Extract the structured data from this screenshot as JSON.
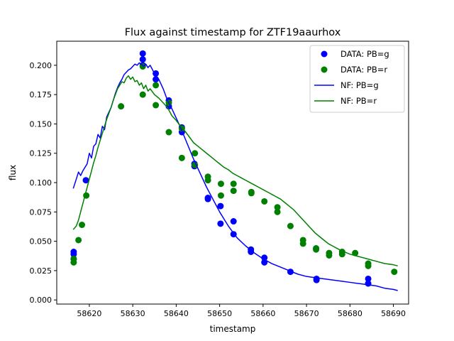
{
  "chart_data": {
    "type": "scatter",
    "title": "Flux against timestamp for ZTF19aaurhox",
    "xlabel": "timestamp",
    "ylabel": "flux",
    "xlim": [
      58612.5,
      58693.5
    ],
    "ylim": [
      -0.0035,
      0.2205
    ],
    "xticks": [
      58620,
      58630,
      58640,
      58650,
      58660,
      58670,
      58680,
      58690
    ],
    "yticks": [
      0.0,
      0.025,
      0.05,
      0.075,
      0.1,
      0.125,
      0.15,
      0.175,
      0.2
    ],
    "ytick_labels": [
      "0.000",
      "0.025",
      "0.050",
      "0.075",
      "0.100",
      "0.125",
      "0.150",
      "0.175",
      "0.200"
    ],
    "grid": false,
    "legend_position": "top-right",
    "colors": {
      "g": "#0000ff",
      "r": "#008000"
    },
    "series": [
      {
        "name": "DATA: PB=g",
        "kind": "points",
        "color": "#0000ff",
        "points": [
          [
            58616.4,
            0.041
          ],
          [
            58616.4,
            0.039
          ],
          [
            58616.4,
            0.035
          ],
          [
            58619.2,
            0.102
          ],
          [
            58632.3,
            0.21
          ],
          [
            58632.3,
            0.205
          ],
          [
            58632.3,
            0.2
          ],
          [
            58635.3,
            0.193
          ],
          [
            58635.3,
            0.188
          ],
          [
            58638.3,
            0.17
          ],
          [
            58638.3,
            0.165
          ],
          [
            58641.3,
            0.147
          ],
          [
            58641.3,
            0.143
          ],
          [
            58644.2,
            0.116
          ],
          [
            58644.2,
            0.114
          ],
          [
            58647.3,
            0.087
          ],
          [
            58647.3,
            0.086
          ],
          [
            58650.2,
            0.08
          ],
          [
            58650.2,
            0.065
          ],
          [
            58653.2,
            0.067
          ],
          [
            58653.2,
            0.056
          ],
          [
            58657.2,
            0.043
          ],
          [
            58657.2,
            0.041
          ],
          [
            58660.3,
            0.036
          ],
          [
            58660.3,
            0.032
          ],
          [
            58666.3,
            0.024
          ],
          [
            58672.3,
            0.018
          ],
          [
            58672.3,
            0.017
          ],
          [
            58684.2,
            0.018
          ],
          [
            58684.2,
            0.014
          ]
        ]
      },
      {
        "name": "DATA: PB=r",
        "kind": "points",
        "color": "#008000",
        "points": [
          [
            58616.4,
            0.035
          ],
          [
            58616.4,
            0.032
          ],
          [
            58617.5,
            0.051
          ],
          [
            58618.3,
            0.064
          ],
          [
            58619.3,
            0.089
          ],
          [
            58627.3,
            0.165
          ],
          [
            58632.3,
            0.199
          ],
          [
            58632.3,
            0.175
          ],
          [
            58635.3,
            0.183
          ],
          [
            58635.3,
            0.166
          ],
          [
            58638.3,
            0.168
          ],
          [
            58638.3,
            0.143
          ],
          [
            58641.3,
            0.146
          ],
          [
            58641.3,
            0.121
          ],
          [
            58644.3,
            0.125
          ],
          [
            58644.3,
            0.115
          ],
          [
            58647.3,
            0.105
          ],
          [
            58647.3,
            0.102
          ],
          [
            58650.3,
            0.099
          ],
          [
            58650.3,
            0.089
          ],
          [
            58653.2,
            0.099
          ],
          [
            58653.2,
            0.093
          ],
          [
            58657.3,
            0.092
          ],
          [
            58657.3,
            0.091
          ],
          [
            58660.3,
            0.084
          ],
          [
            58663.3,
            0.079
          ],
          [
            58663.3,
            0.075
          ],
          [
            58666.3,
            0.063
          ],
          [
            58669.2,
            0.051
          ],
          [
            58669.2,
            0.048
          ],
          [
            58672.2,
            0.044
          ],
          [
            58672.2,
            0.043
          ],
          [
            58675.2,
            0.04
          ],
          [
            58675.2,
            0.038
          ],
          [
            58678.2,
            0.041
          ],
          [
            58678.2,
            0.039
          ],
          [
            58681.2,
            0.04
          ],
          [
            58684.2,
            0.031
          ],
          [
            58684.2,
            0.029
          ],
          [
            58690.2,
            0.024
          ]
        ]
      },
      {
        "name": "NF: PB=g",
        "kind": "line",
        "color": "#0000ff",
        "points": [
          [
            58616.3,
            0.095
          ],
          [
            58617.0,
            0.103
          ],
          [
            58617.5,
            0.109
          ],
          [
            58618.0,
            0.106
          ],
          [
            58618.5,
            0.11
          ],
          [
            58619.0,
            0.113
          ],
          [
            58619.5,
            0.116
          ],
          [
            58620.0,
            0.125
          ],
          [
            58620.5,
            0.121
          ],
          [
            58621.0,
            0.131
          ],
          [
            58621.5,
            0.133
          ],
          [
            58622.0,
            0.141
          ],
          [
            58622.5,
            0.138
          ],
          [
            58623.0,
            0.148
          ],
          [
            58623.5,
            0.145
          ],
          [
            58624.0,
            0.156
          ],
          [
            58624.5,
            0.16
          ],
          [
            58625.0,
            0.164
          ],
          [
            58625.5,
            0.17
          ],
          [
            58626.0,
            0.176
          ],
          [
            58626.5,
            0.181
          ],
          [
            58627.0,
            0.185
          ],
          [
            58627.5,
            0.188
          ],
          [
            58628.0,
            0.192
          ],
          [
            58628.5,
            0.194
          ],
          [
            58629.0,
            0.196
          ],
          [
            58629.5,
            0.197
          ],
          [
            58630.0,
            0.199
          ],
          [
            58630.5,
            0.201
          ],
          [
            58631.0,
            0.2
          ],
          [
            58631.5,
            0.202
          ],
          [
            58632.0,
            0.201
          ],
          [
            58632.5,
            0.199
          ],
          [
            58633.0,
            0.201
          ],
          [
            58633.5,
            0.198
          ],
          [
            58634.0,
            0.2
          ],
          [
            58635.0,
            0.193
          ],
          [
            58636.0,
            0.188
          ],
          [
            58637.0,
            0.18
          ],
          [
            58638.0,
            0.17
          ],
          [
            58639.0,
            0.163
          ],
          [
            58640.0,
            0.155
          ],
          [
            58641.0,
            0.147
          ],
          [
            58642.0,
            0.138
          ],
          [
            58643.0,
            0.129
          ],
          [
            58644.0,
            0.12
          ],
          [
            58645.0,
            0.112
          ],
          [
            58646.0,
            0.104
          ],
          [
            58647.0,
            0.096
          ],
          [
            58648.0,
            0.089
          ],
          [
            58649.0,
            0.082
          ],
          [
            58650.0,
            0.075
          ],
          [
            58651.0,
            0.069
          ],
          [
            58652.0,
            0.063
          ],
          [
            58653.0,
            0.058
          ],
          [
            58654.0,
            0.053
          ],
          [
            58656.0,
            0.046
          ],
          [
            58658.0,
            0.04
          ],
          [
            58660.0,
            0.035
          ],
          [
            58662.0,
            0.031
          ],
          [
            58664.0,
            0.028
          ],
          [
            58666.0,
            0.025
          ],
          [
            58668.0,
            0.022
          ],
          [
            58670.0,
            0.02
          ],
          [
            58672.0,
            0.019
          ],
          [
            58674.0,
            0.018
          ],
          [
            58676.0,
            0.017
          ],
          [
            58678.0,
            0.016
          ],
          [
            58680.0,
            0.015
          ],
          [
            58682.0,
            0.014
          ],
          [
            58684.0,
            0.013
          ],
          [
            58686.0,
            0.012
          ],
          [
            58688.0,
            0.01
          ],
          [
            58690.0,
            0.009
          ],
          [
            58691.0,
            0.008
          ]
        ]
      },
      {
        "name": "NF: PB=r",
        "kind": "line",
        "color": "#008000",
        "points": [
          [
            58616.3,
            0.06
          ],
          [
            58617.0,
            0.063
          ],
          [
            58617.5,
            0.068
          ],
          [
            58618.0,
            0.075
          ],
          [
            58618.5,
            0.082
          ],
          [
            58619.0,
            0.089
          ],
          [
            58619.5,
            0.096
          ],
          [
            58620.0,
            0.103
          ],
          [
            58620.5,
            0.11
          ],
          [
            58621.0,
            0.117
          ],
          [
            58621.5,
            0.123
          ],
          [
            58622.0,
            0.13
          ],
          [
            58622.5,
            0.136
          ],
          [
            58623.0,
            0.142
          ],
          [
            58623.5,
            0.148
          ],
          [
            58624.0,
            0.154
          ],
          [
            58624.5,
            0.159
          ],
          [
            58625.0,
            0.164
          ],
          [
            58625.5,
            0.17
          ],
          [
            58626.0,
            0.175
          ],
          [
            58626.5,
            0.18
          ],
          [
            58627.0,
            0.183
          ],
          [
            58627.5,
            0.186
          ],
          [
            58628.0,
            0.185
          ],
          [
            58628.5,
            0.189
          ],
          [
            58629.0,
            0.191
          ],
          [
            58629.5,
            0.188
          ],
          [
            58630.0,
            0.19
          ],
          [
            58630.5,
            0.186
          ],
          [
            58631.0,
            0.187
          ],
          [
            58631.5,
            0.183
          ],
          [
            58632.0,
            0.185
          ],
          [
            58632.5,
            0.18
          ],
          [
            58633.0,
            0.183
          ],
          [
            58633.5,
            0.178
          ],
          [
            58634.0,
            0.18
          ],
          [
            58635.0,
            0.175
          ],
          [
            58636.0,
            0.172
          ],
          [
            58637.0,
            0.168
          ],
          [
            58638.0,
            0.164
          ],
          [
            58639.0,
            0.157
          ],
          [
            58640.0,
            0.153
          ],
          [
            58641.0,
            0.148
          ],
          [
            58642.0,
            0.144
          ],
          [
            58643.0,
            0.139
          ],
          [
            58644.0,
            0.134
          ],
          [
            58645.0,
            0.131
          ],
          [
            58646.0,
            0.128
          ],
          [
            58647.0,
            0.125
          ],
          [
            58648.0,
            0.122
          ],
          [
            58649.0,
            0.119
          ],
          [
            58650.0,
            0.116
          ],
          [
            58651.0,
            0.113
          ],
          [
            58652.0,
            0.111
          ],
          [
            58653.0,
            0.108
          ],
          [
            58654.0,
            0.106
          ],
          [
            58655.0,
            0.104
          ],
          [
            58656.0,
            0.102
          ],
          [
            58657.0,
            0.1
          ],
          [
            58658.0,
            0.098
          ],
          [
            58659.0,
            0.096
          ],
          [
            58660.0,
            0.094
          ],
          [
            58661.0,
            0.092
          ],
          [
            58662.0,
            0.09
          ],
          [
            58663.0,
            0.088
          ],
          [
            58664.0,
            0.086
          ],
          [
            58665.0,
            0.083
          ],
          [
            58666.0,
            0.08
          ],
          [
            58667.0,
            0.077
          ],
          [
            58668.0,
            0.073
          ],
          [
            58669.0,
            0.069
          ],
          [
            58670.0,
            0.065
          ],
          [
            58671.0,
            0.061
          ],
          [
            58672.0,
            0.057
          ],
          [
            58673.0,
            0.054
          ],
          [
            58674.0,
            0.051
          ],
          [
            58675.0,
            0.048
          ],
          [
            58676.0,
            0.046
          ],
          [
            58677.0,
            0.044
          ],
          [
            58678.0,
            0.042
          ],
          [
            58680.0,
            0.039
          ],
          [
            58682.0,
            0.037
          ],
          [
            58684.0,
            0.035
          ],
          [
            58686.0,
            0.033
          ],
          [
            58688.0,
            0.031
          ],
          [
            58690.0,
            0.03
          ],
          [
            58691.0,
            0.029
          ]
        ]
      }
    ]
  }
}
